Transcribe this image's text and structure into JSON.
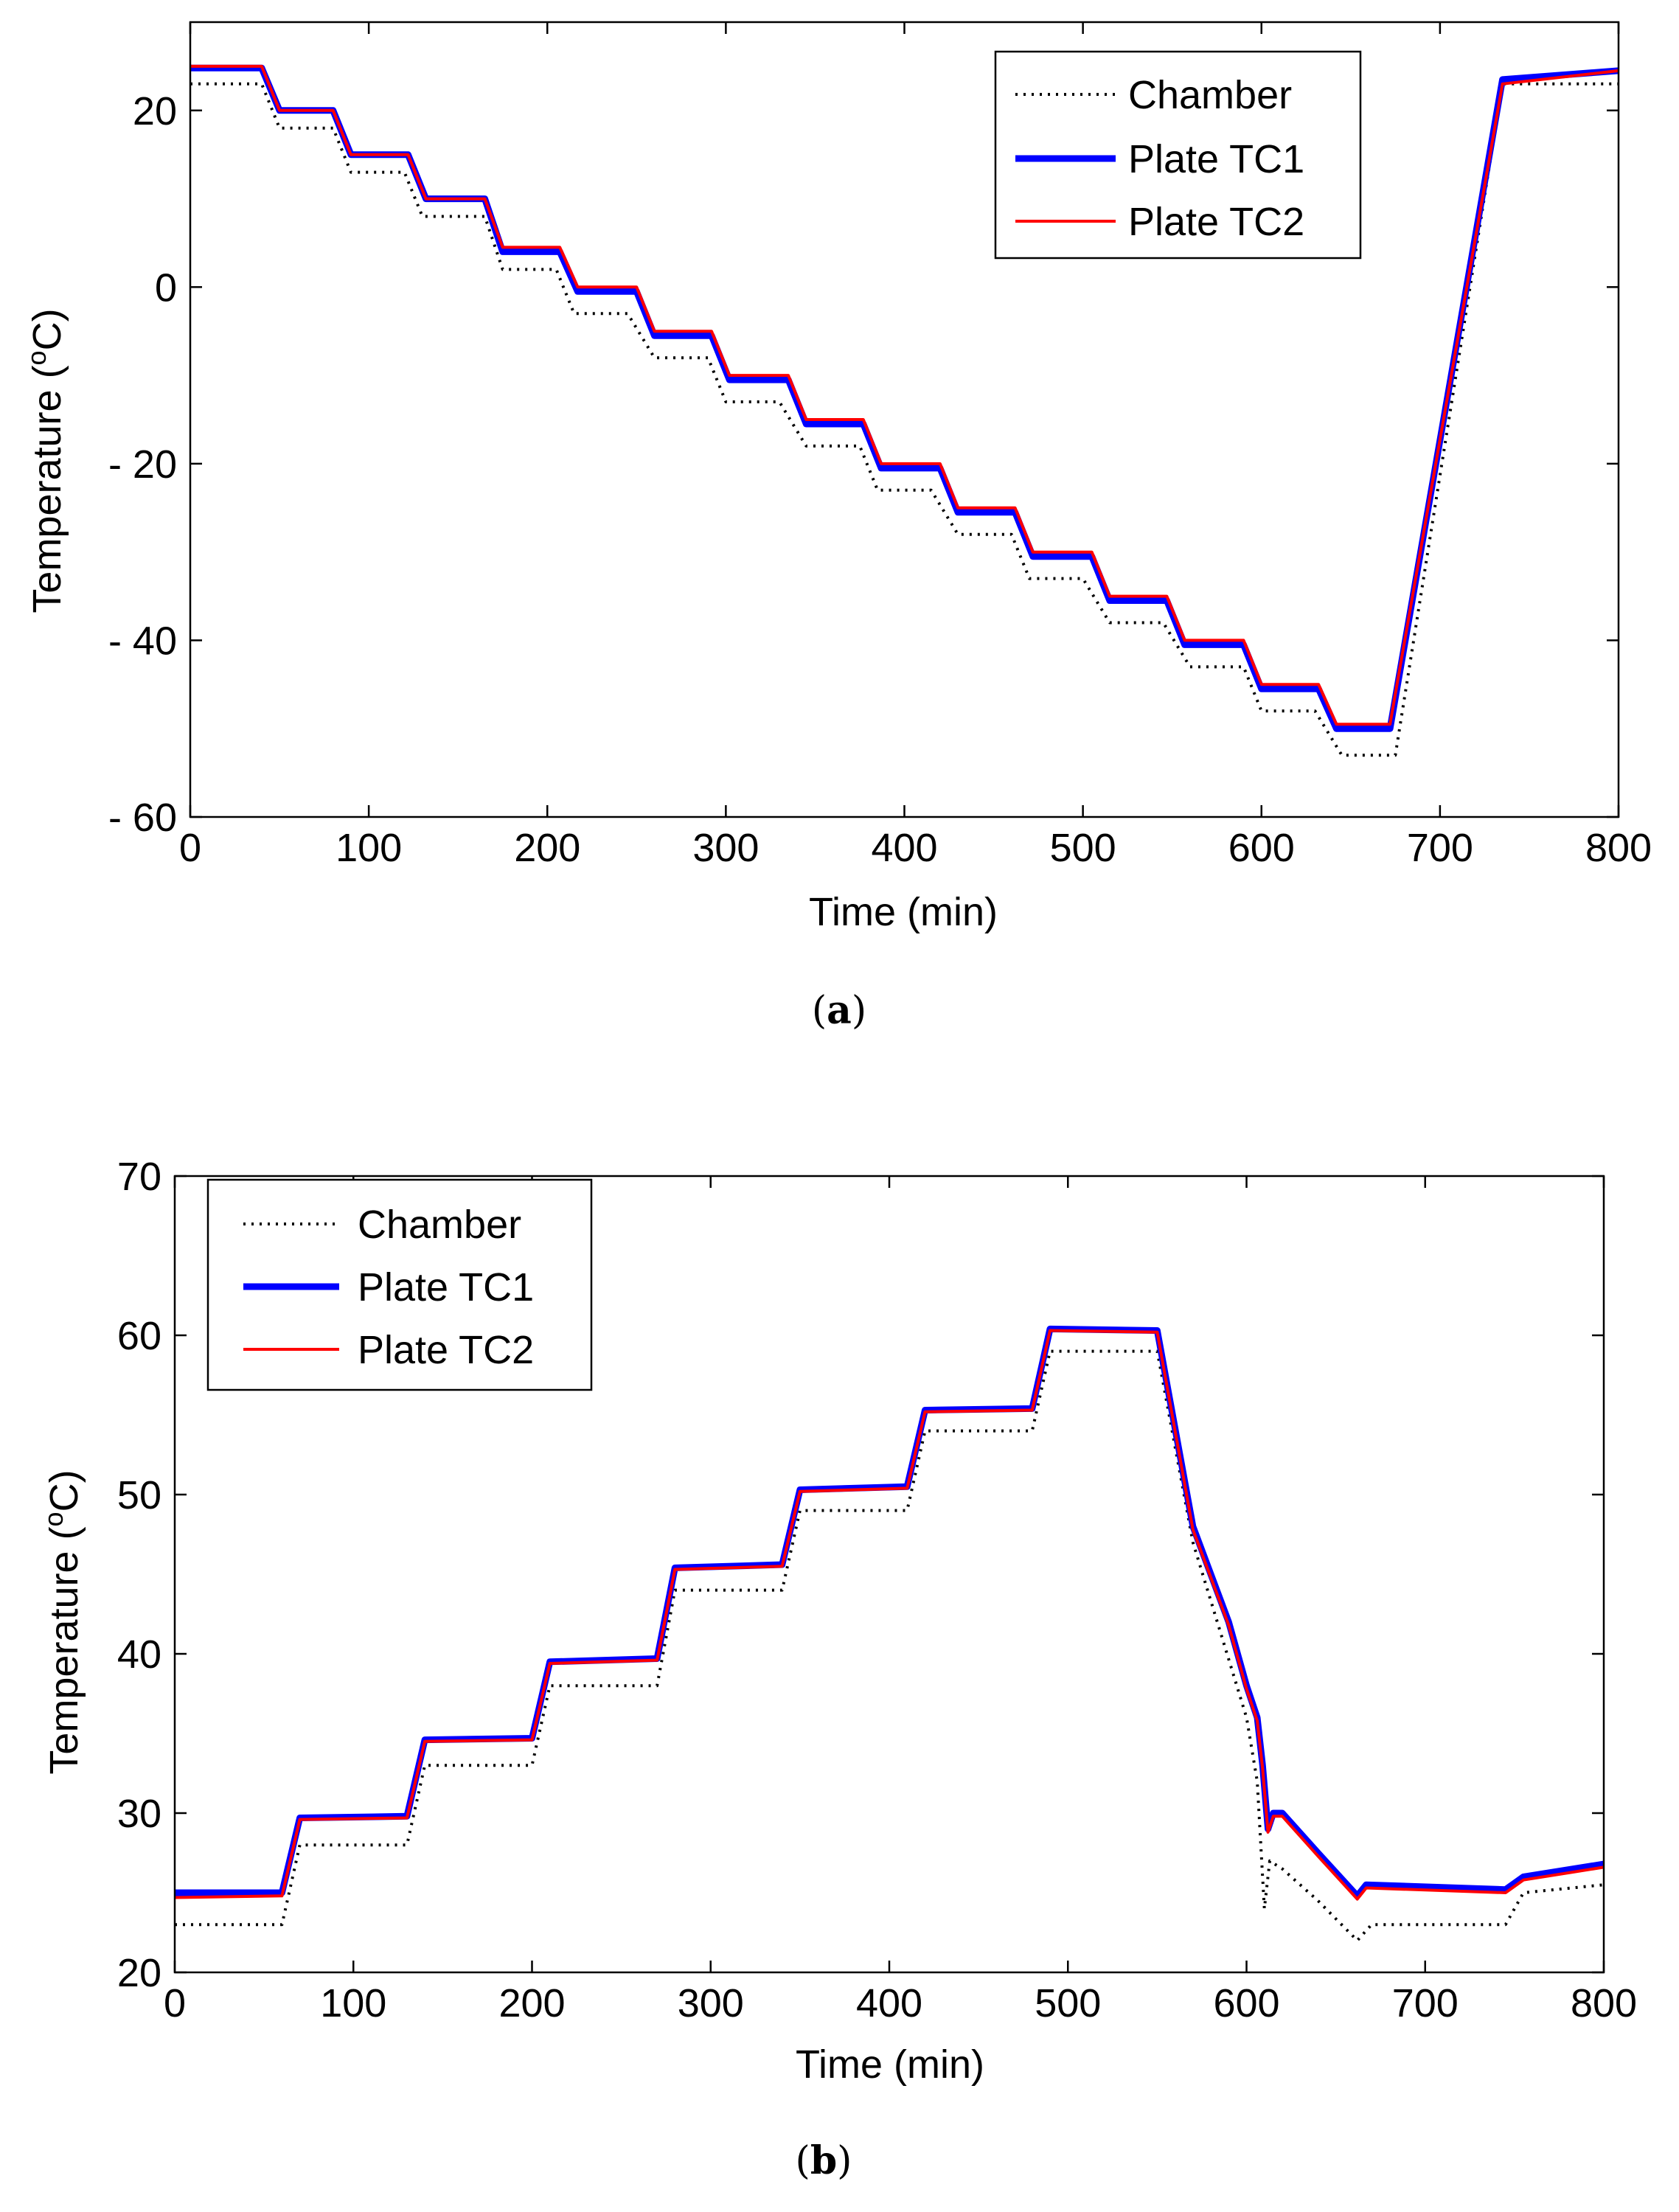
{
  "chart_data": [
    {
      "type": "line",
      "panel": "a",
      "caption": "a",
      "xlabel": "Time (min)",
      "ylabel": "Temperature (",
      "ylabel_sup": "o",
      "ylabel_unit": "C)",
      "xlim": [
        0,
        800
      ],
      "ylim": [
        -60,
        30
      ],
      "xticks": [
        0,
        100,
        200,
        300,
        400,
        500,
        600,
        700,
        800
      ],
      "yticks": [
        20,
        0,
        -20,
        -40,
        -60
      ],
      "ytick_labels": [
        "20",
        "0",
        "- 20",
        "- 40",
        "- 60"
      ],
      "grid": false,
      "legend_position": "top-right",
      "series": [
        {
          "name": "Chamber",
          "style": "dotted",
          "color": "#000000",
          "x": [
            0,
            40,
            50,
            80,
            90,
            120,
            130,
            165,
            175,
            205,
            215,
            245,
            260,
            290,
            300,
            330,
            345,
            375,
            385,
            415,
            430,
            460,
            470,
            500,
            515,
            545,
            560,
            590,
            600,
            630,
            645,
            675,
            735,
            800
          ],
          "y": [
            23,
            23,
            18,
            18,
            13,
            13,
            8,
            8,
            2,
            2,
            -3,
            -3,
            -8,
            -8,
            -13,
            -13,
            -18,
            -18,
            -23,
            -23,
            -28,
            -28,
            -33,
            -33,
            -38,
            -38,
            -43,
            -43,
            -48,
            -48,
            -53,
            -53,
            23,
            23
          ]
        },
        {
          "name": "Plate TC1",
          "style": "solid",
          "color": "#0000ff",
          "x": [
            0,
            40,
            50,
            80,
            90,
            122,
            132,
            165,
            175,
            207,
            217,
            250,
            260,
            292,
            302,
            335,
            345,
            377,
            387,
            420,
            430,
            462,
            472,
            505,
            515,
            547,
            557,
            590,
            600,
            632,
            642,
            672,
            735,
            800
          ],
          "y": [
            24.8,
            24.8,
            20,
            20,
            15,
            15,
            10,
            10,
            4,
            4,
            -0.5,
            -0.5,
            -5.5,
            -5.5,
            -10.5,
            -10.5,
            -15.5,
            -15.5,
            -20.5,
            -20.5,
            -25.5,
            -25.5,
            -30.5,
            -30.5,
            -35.5,
            -35.5,
            -40.5,
            -40.5,
            -45.5,
            -45.5,
            -50,
            -50,
            23.5,
            24.5
          ]
        },
        {
          "name": "Plate TC2",
          "style": "solid",
          "color": "#ff0000",
          "x": [
            0,
            40,
            50,
            80,
            90,
            122,
            132,
            165,
            175,
            207,
            217,
            250,
            260,
            292,
            302,
            335,
            345,
            377,
            387,
            420,
            430,
            462,
            472,
            505,
            515,
            547,
            557,
            590,
            600,
            632,
            642,
            672,
            735,
            800
          ],
          "y": [
            25,
            25,
            20,
            20,
            15,
            15,
            10,
            10,
            4.5,
            4.5,
            0,
            0,
            -5,
            -5,
            -10,
            -10,
            -15,
            -15,
            -20,
            -20,
            -25,
            -25,
            -30,
            -30,
            -35,
            -35,
            -40,
            -40,
            -45,
            -45,
            -49.5,
            -49.5,
            23,
            24.5
          ]
        }
      ]
    },
    {
      "type": "line",
      "panel": "b",
      "caption": "b",
      "xlabel": "Time (min)",
      "ylabel": "Temperature (",
      "ylabel_sup": "o",
      "ylabel_unit": "C)",
      "xlim": [
        0,
        800
      ],
      "ylim": [
        20,
        70
      ],
      "xticks": [
        0,
        100,
        200,
        300,
        400,
        500,
        600,
        700,
        800
      ],
      "yticks": [
        20,
        30,
        40,
        50,
        60,
        70
      ],
      "ytick_labels": [
        "20",
        "30",
        "40",
        "50",
        "60",
        "70"
      ],
      "grid": false,
      "legend_position": "top-left",
      "series": [
        {
          "name": "Chamber",
          "style": "dotted",
          "color": "#000000",
          "x": [
            0,
            60,
            70,
            130,
            140,
            200,
            210,
            270,
            280,
            340,
            350,
            410,
            420,
            480,
            490,
            550,
            570,
            600,
            606,
            610,
            613,
            620,
            640,
            662,
            670,
            745,
            755,
            800
          ],
          "y": [
            23,
            23,
            28,
            28,
            33,
            33,
            38,
            38,
            44,
            44,
            49,
            49,
            54,
            54,
            59,
            59,
            47,
            36,
            32,
            24,
            27,
            26.5,
            24.5,
            22,
            23,
            23,
            25,
            25.5
          ]
        },
        {
          "name": "Plate TC1",
          "style": "solid",
          "color": "#0000ff",
          "x": [
            0,
            60,
            70,
            130,
            140,
            200,
            210,
            270,
            280,
            340,
            350,
            410,
            420,
            480,
            490,
            550,
            570,
            590,
            600,
            606,
            609,
            612,
            615,
            620,
            640,
            662,
            667,
            745,
            755,
            800
          ],
          "y": [
            25,
            25,
            29.7,
            29.8,
            34.6,
            34.7,
            39.5,
            39.7,
            45.4,
            45.6,
            50.3,
            50.5,
            55.3,
            55.4,
            60.4,
            60.3,
            48,
            42,
            38,
            36,
            33,
            29,
            30,
            30,
            27.5,
            24.8,
            25.5,
            25.2,
            26,
            26.8
          ]
        },
        {
          "name": "Plate TC2",
          "style": "solid",
          "color": "#ff0000",
          "x": [
            0,
            60,
            70,
            130,
            140,
            200,
            210,
            270,
            280,
            340,
            350,
            410,
            420,
            480,
            490,
            550,
            570,
            590,
            600,
            606,
            609,
            612,
            615,
            620,
            640,
            662,
            667,
            745,
            755,
            800
          ],
          "y": [
            24.7,
            24.8,
            29.6,
            29.7,
            34.5,
            34.6,
            39.4,
            39.6,
            45.3,
            45.5,
            50.2,
            50.4,
            55.2,
            55.3,
            60.3,
            60.2,
            47.8,
            41.8,
            37.8,
            35.8,
            32.8,
            28.8,
            29.8,
            29.8,
            27.3,
            24.6,
            25.3,
            25,
            25.8,
            26.6
          ]
        }
      ]
    }
  ]
}
